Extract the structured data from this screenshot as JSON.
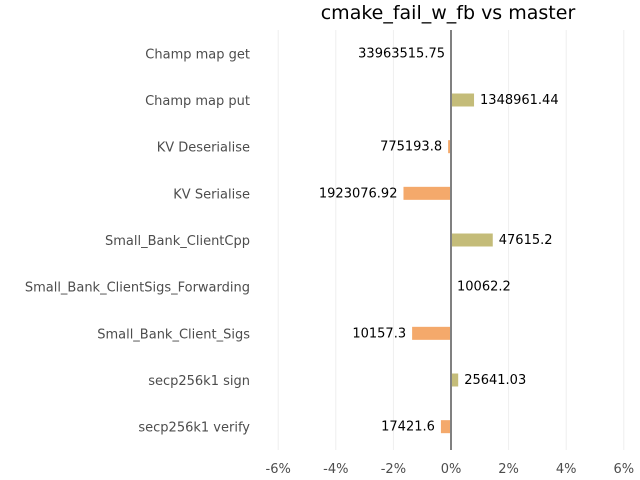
{
  "chart_data": {
    "type": "bar",
    "orientation": "horizontal",
    "title": "cmake_fail_w_fb vs master",
    "xlabel": "",
    "ylabel": "",
    "xlim": [
      -6.3,
      6.3
    ],
    "x_ticks": [
      -6,
      -4,
      -2,
      0,
      2,
      4,
      6
    ],
    "x_tick_labels": [
      "-6%",
      "-4%",
      "-2%",
      "0%",
      "2%",
      "4%",
      "6%"
    ],
    "grid": "vertical",
    "categories": [
      "Champ map get",
      "Champ map put",
      "KV Deserialise",
      "KV Serialise",
      "Small_Bank_ClientCpp",
      "Small_Bank_ClientSigs_Forwarding",
      "Small_Bank_Client_Sigs",
      "secp256k1 sign",
      "secp256k1 verify"
    ],
    "values": [
      0.0,
      0.8,
      -0.1,
      -1.65,
      1.45,
      0.0,
      -1.35,
      0.25,
      -0.35
    ],
    "data_labels": [
      "33963515.75",
      "1348961.44",
      "775193.8",
      "1923076.92",
      "47615.2",
      "10062.2",
      "10157.3",
      "25641.03",
      "17421.6"
    ],
    "colors": {
      "positive": "#c4bc79",
      "negative": "#f4a96b"
    }
  }
}
